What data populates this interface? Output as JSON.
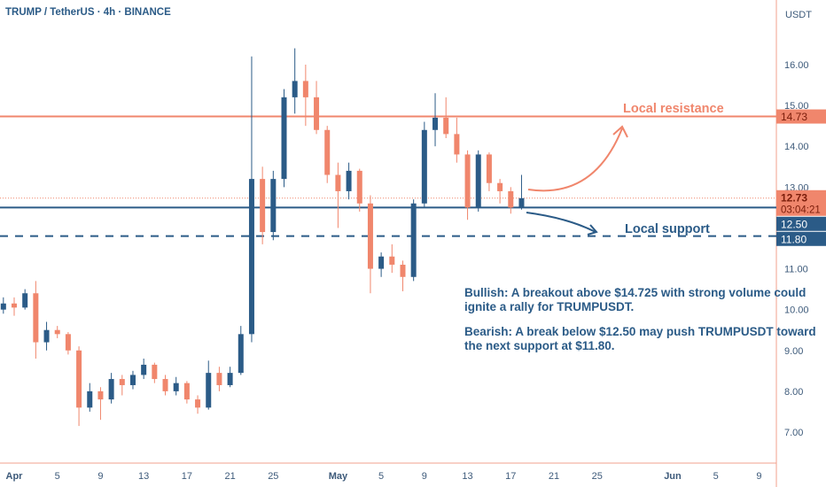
{
  "header": {
    "title": "TRUMP / TetherUS · 4h · BINANCE",
    "currency": "USDT"
  },
  "chart_data": {
    "type": "candlestick",
    "title": "TRUMP / TetherUS · 4h · BINANCE",
    "ylabel": "USDT",
    "ylim": [
      6.3,
      17.0
    ],
    "y_ticks": [
      "16.00",
      "15.00",
      "14.00",
      "13.00",
      "11.00",
      "10.00",
      "9.00",
      "8.00",
      "7.00"
    ],
    "x_ticks": [
      {
        "date": "Apr 1",
        "label": "Apr",
        "major": true
      },
      {
        "date": "Apr 5",
        "label": "5"
      },
      {
        "date": "Apr 9",
        "label": "9"
      },
      {
        "date": "Apr 13",
        "label": "13"
      },
      {
        "date": "Apr 17",
        "label": "17"
      },
      {
        "date": "Apr 21",
        "label": "21"
      },
      {
        "date": "Apr 25",
        "label": "25"
      },
      {
        "date": "May 1",
        "label": "May",
        "major": true
      },
      {
        "date": "May 5",
        "label": "5"
      },
      {
        "date": "May 9",
        "label": "9"
      },
      {
        "date": "May 13",
        "label": "13"
      },
      {
        "date": "May 17",
        "label": "17"
      },
      {
        "date": "May 21",
        "label": "21"
      },
      {
        "date": "May 25",
        "label": "25"
      },
      {
        "date": "Jun 1",
        "label": "Jun",
        "major": true
      },
      {
        "date": "Jun 5",
        "label": "5"
      },
      {
        "date": "Jun 9",
        "label": "9"
      }
    ],
    "colors": {
      "up": "#2b5b87",
      "down": "#f0866c",
      "resistance": "#f0866c",
      "support": "#2b5b87",
      "axis_border": "#f0a08c"
    },
    "candles": [
      {
        "date": "Mar 31",
        "o": 10.0,
        "h": 10.3,
        "l": 9.9,
        "c": 10.15
      },
      {
        "date": "Apr 1",
        "o": 10.15,
        "h": 10.3,
        "l": 9.85,
        "c": 10.05
      },
      {
        "date": "Apr 2",
        "o": 10.05,
        "h": 10.5,
        "l": 10.0,
        "c": 10.4
      },
      {
        "date": "Apr 3",
        "o": 10.4,
        "h": 10.7,
        "l": 8.8,
        "c": 9.2
      },
      {
        "date": "Apr 4",
        "o": 9.2,
        "h": 9.7,
        "l": 9.0,
        "c": 9.5
      },
      {
        "date": "Apr 5",
        "o": 9.5,
        "h": 9.6,
        "l": 9.3,
        "c": 9.4
      },
      {
        "date": "Apr 6",
        "o": 9.4,
        "h": 9.45,
        "l": 8.9,
        "c": 9.0
      },
      {
        "date": "Apr 7",
        "o": 9.0,
        "h": 9.1,
        "l": 7.15,
        "c": 7.6
      },
      {
        "date": "Apr 8",
        "o": 7.6,
        "h": 8.2,
        "l": 7.5,
        "c": 8.0
      },
      {
        "date": "Apr 9",
        "o": 8.0,
        "h": 8.1,
        "l": 7.3,
        "c": 7.8
      },
      {
        "date": "Apr 10",
        "o": 7.8,
        "h": 8.45,
        "l": 7.7,
        "c": 8.3
      },
      {
        "date": "Apr 11",
        "o": 8.3,
        "h": 8.4,
        "l": 7.9,
        "c": 8.15
      },
      {
        "date": "Apr 12",
        "o": 8.15,
        "h": 8.5,
        "l": 8.05,
        "c": 8.4
      },
      {
        "date": "Apr 13",
        "o": 8.4,
        "h": 8.8,
        "l": 8.3,
        "c": 8.65
      },
      {
        "date": "Apr 14",
        "o": 8.65,
        "h": 8.7,
        "l": 8.2,
        "c": 8.3
      },
      {
        "date": "Apr 15",
        "o": 8.3,
        "h": 8.4,
        "l": 7.9,
        "c": 8.0
      },
      {
        "date": "Apr 16",
        "o": 8.0,
        "h": 8.35,
        "l": 7.9,
        "c": 8.2
      },
      {
        "date": "Apr 17",
        "o": 8.2,
        "h": 8.25,
        "l": 7.7,
        "c": 7.8
      },
      {
        "date": "Apr 18",
        "o": 7.8,
        "h": 7.9,
        "l": 7.45,
        "c": 7.6
      },
      {
        "date": "Apr 19",
        "o": 7.6,
        "h": 8.75,
        "l": 7.55,
        "c": 8.45
      },
      {
        "date": "Apr 20",
        "o": 8.45,
        "h": 8.6,
        "l": 8.0,
        "c": 8.15
      },
      {
        "date": "Apr 21",
        "o": 8.15,
        "h": 8.6,
        "l": 8.1,
        "c": 8.45
      },
      {
        "date": "Apr 22",
        "o": 8.45,
        "h": 9.6,
        "l": 8.4,
        "c": 9.4
      },
      {
        "date": "Apr 23",
        "o": 9.4,
        "h": 16.2,
        "l": 9.2,
        "c": 13.2
      },
      {
        "date": "Apr 24",
        "o": 13.2,
        "h": 13.5,
        "l": 11.6,
        "c": 11.9
      },
      {
        "date": "Apr 25",
        "o": 11.9,
        "h": 13.4,
        "l": 11.7,
        "c": 13.2
      },
      {
        "date": "Apr 26",
        "o": 13.2,
        "h": 15.4,
        "l": 13.0,
        "c": 15.2
      },
      {
        "date": "Apr 27",
        "o": 15.2,
        "h": 16.4,
        "l": 14.8,
        "c": 15.6
      },
      {
        "date": "Apr 28",
        "o": 15.6,
        "h": 16.0,
        "l": 14.5,
        "c": 15.2
      },
      {
        "date": "Apr 29",
        "o": 15.2,
        "h": 15.6,
        "l": 14.3,
        "c": 14.4
      },
      {
        "date": "Apr 30",
        "o": 14.4,
        "h": 14.5,
        "l": 13.1,
        "c": 13.3
      },
      {
        "date": "May 1",
        "o": 13.3,
        "h": 13.6,
        "l": 12.0,
        "c": 12.9
      },
      {
        "date": "May 2",
        "o": 12.9,
        "h": 13.6,
        "l": 12.7,
        "c": 13.4
      },
      {
        "date": "May 3",
        "o": 13.4,
        "h": 13.45,
        "l": 12.4,
        "c": 12.6
      },
      {
        "date": "May 4",
        "o": 12.6,
        "h": 12.8,
        "l": 10.4,
        "c": 11.0
      },
      {
        "date": "May 5",
        "o": 11.0,
        "h": 11.4,
        "l": 10.8,
        "c": 11.3
      },
      {
        "date": "May 6",
        "o": 11.3,
        "h": 11.6,
        "l": 10.9,
        "c": 11.1
      },
      {
        "date": "May 7",
        "o": 11.1,
        "h": 11.2,
        "l": 10.45,
        "c": 10.8
      },
      {
        "date": "May 8",
        "o": 10.8,
        "h": 12.7,
        "l": 10.7,
        "c": 12.6
      },
      {
        "date": "May 9",
        "o": 12.6,
        "h": 14.6,
        "l": 12.5,
        "c": 14.4
      },
      {
        "date": "May 10",
        "o": 14.4,
        "h": 15.3,
        "l": 14.0,
        "c": 14.7
      },
      {
        "date": "May 11",
        "o": 14.7,
        "h": 15.2,
        "l": 14.2,
        "c": 14.3
      },
      {
        "date": "May 12",
        "o": 14.3,
        "h": 14.7,
        "l": 13.6,
        "c": 13.8
      },
      {
        "date": "May 13",
        "o": 13.8,
        "h": 13.9,
        "l": 12.2,
        "c": 12.5
      },
      {
        "date": "May 14",
        "o": 12.5,
        "h": 13.9,
        "l": 12.4,
        "c": 13.8
      },
      {
        "date": "May 15",
        "o": 13.8,
        "h": 13.85,
        "l": 12.9,
        "c": 13.1
      },
      {
        "date": "May 16",
        "o": 13.1,
        "h": 13.2,
        "l": 12.6,
        "c": 12.9
      },
      {
        "date": "May 17",
        "o": 12.9,
        "h": 13.0,
        "l": 12.35,
        "c": 12.5
      },
      {
        "date": "May 18",
        "o": 12.5,
        "h": 13.3,
        "l": 12.45,
        "c": 12.73
      }
    ],
    "levels": [
      {
        "name": "Local resistance",
        "value": 14.73,
        "label": "14.73",
        "style": "solid",
        "color": "#f0866c"
      },
      {
        "name": "",
        "value": 12.5,
        "label": "12.50",
        "style": "solid",
        "color": "#2b5b87"
      },
      {
        "name": "Local support",
        "value": 11.8,
        "label": "11.80",
        "style": "dashed",
        "color": "#2b5b87"
      }
    ],
    "last_price": {
      "value": 12.73,
      "label": "12.73",
      "countdown": "03:04:21",
      "color": "#f0866c"
    },
    "annotations": {
      "resistance_text": "Local resistance",
      "support_text": "Local support",
      "bullish": "Bullish: A breakout above $14.725 with strong volume could ignite a rally for TRUMPUSDT.",
      "bearish": "Bearish: A break below $12.50 may push TRUMPUSDT toward the next support at $11.80."
    }
  }
}
